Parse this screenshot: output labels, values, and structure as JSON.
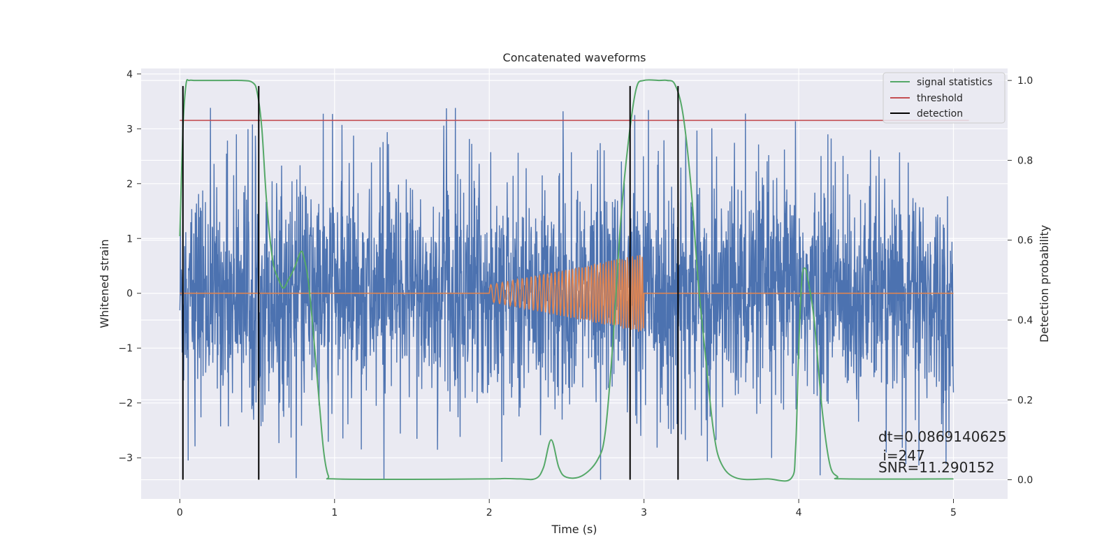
{
  "chart_data": {
    "type": "line",
    "title": "Concatenated waveforms",
    "xlabel": "Time (s)",
    "ylabel": "Whitened strain",
    "y2label": "Detection probability",
    "xlim": [
      -0.25,
      5.35
    ],
    "ylim": [
      -3.75,
      4.1
    ],
    "y2lim": [
      -0.048,
      1.03
    ],
    "x_ticks": [
      0,
      1,
      2,
      3,
      4,
      5
    ],
    "y_ticks": [
      -3,
      -2,
      -1,
      0,
      1,
      2,
      3,
      4
    ],
    "y2_ticks": [
      0.0,
      0.2,
      0.4,
      0.6,
      0.8,
      1.0
    ],
    "grid": true,
    "legend_position": "top-right",
    "colors": {
      "background": "#eaeaf2",
      "grid": "#ffffff",
      "strain": "#4c72b0",
      "injected": "#dd8452",
      "signal_statistics": "#55a868",
      "threshold": "#c44e52",
      "detection": "#000000"
    },
    "series": [
      {
        "name": "",
        "axis": "left",
        "description_kind": "noise",
        "x_range": [
          0,
          5
        ],
        "typical_amplitude": 1.0,
        "peak_max": 3.75,
        "peak_min": -3.4
      },
      {
        "name": "",
        "axis": "left",
        "description_kind": "chirp",
        "x_start": 2.0,
        "x_end": 3.0,
        "amp_start": 0.15,
        "amp_end": 0.72,
        "x_range": [
          0,
          5
        ]
      },
      {
        "name": "signal statistics",
        "axis": "right",
        "x": [
          0.0,
          0.02,
          0.04,
          0.06,
          0.1,
          0.2,
          0.3,
          0.4,
          0.47,
          0.5,
          0.53,
          0.56,
          0.6,
          0.64,
          0.67,
          0.7,
          0.74,
          0.78,
          0.8,
          0.83,
          0.86,
          0.9,
          0.93,
          0.96,
          1.0,
          1.5,
          2.0,
          2.1,
          2.2,
          2.3,
          2.35,
          2.4,
          2.45,
          2.5,
          2.6,
          2.7,
          2.75,
          2.8,
          2.85,
          2.9,
          2.95,
          3.0,
          3.1,
          3.15,
          3.2,
          3.25,
          3.3,
          3.35,
          3.4,
          3.45,
          3.5,
          3.6,
          3.8,
          3.95,
          3.98,
          4.0,
          4.02,
          4.04,
          4.06,
          4.1,
          4.15,
          4.2,
          4.25,
          4.3,
          5.0
        ],
        "y": [
          0.61,
          0.88,
          0.99,
          1.0,
          1.0,
          1.0,
          1.0,
          1.0,
          0.995,
          0.97,
          0.88,
          0.7,
          0.55,
          0.5,
          0.48,
          0.5,
          0.53,
          0.57,
          0.56,
          0.5,
          0.38,
          0.2,
          0.07,
          0.01,
          0.002,
          0.001,
          0.002,
          0.003,
          0.002,
          0.003,
          0.03,
          0.1,
          0.03,
          0.006,
          0.01,
          0.05,
          0.12,
          0.35,
          0.65,
          0.85,
          0.98,
          1.0,
          1.0,
          1.0,
          0.99,
          0.92,
          0.75,
          0.5,
          0.3,
          0.12,
          0.04,
          0.004,
          0.002,
          0.003,
          0.08,
          0.33,
          0.5,
          0.53,
          0.5,
          0.4,
          0.18,
          0.04,
          0.008,
          0.002,
          0.002
        ]
      },
      {
        "name": "threshold",
        "axis": "right",
        "x": [
          0,
          5.1
        ],
        "y": [
          0.9,
          0.9
        ]
      },
      {
        "name": "detection",
        "axis": "left",
        "x": [
          0.02,
          0.51,
          2.91,
          3.22
        ],
        "y_range": [
          -3.4,
          3.78
        ]
      }
    ],
    "legend": [
      "signal statistics",
      "threshold",
      "detection"
    ],
    "annotations": [
      "dt=0.0869140625",
      " i=247",
      "SNR=11.290152"
    ]
  }
}
